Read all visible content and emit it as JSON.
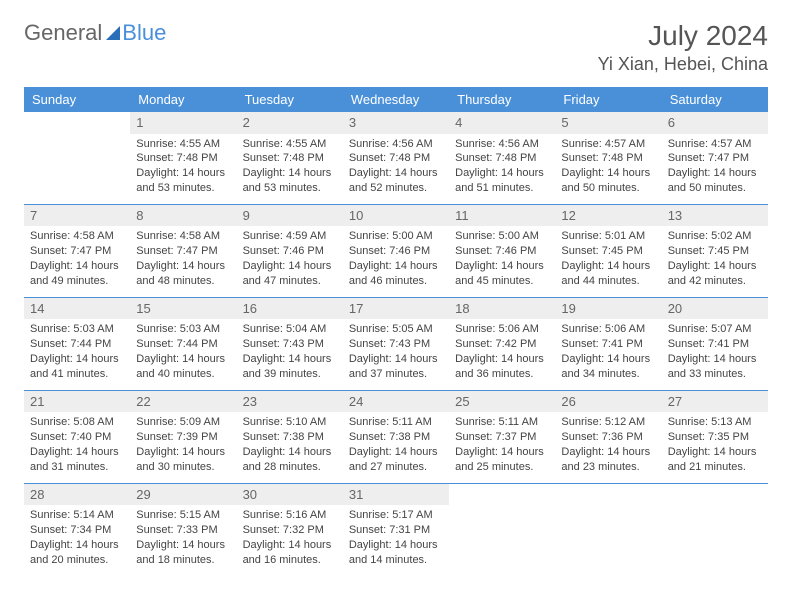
{
  "brand": {
    "part1": "General",
    "part2": "Blue"
  },
  "title": "July 2024",
  "location": "Yi Xian, Hebei, China",
  "colors": {
    "header_bg": "#4a90d9",
    "header_text": "#ffffff",
    "daynum_bg": "#eeeeee",
    "border": "#4a90d9",
    "body_text": "#444444"
  },
  "weekdays": [
    "Sunday",
    "Monday",
    "Tuesday",
    "Wednesday",
    "Thursday",
    "Friday",
    "Saturday"
  ],
  "cells": [
    {
      "day": "",
      "sunrise": "",
      "sunset": "",
      "daylight": "",
      "blank": true
    },
    {
      "day": "1",
      "sunrise": "Sunrise: 4:55 AM",
      "sunset": "Sunset: 7:48 PM",
      "daylight": "Daylight: 14 hours and 53 minutes."
    },
    {
      "day": "2",
      "sunrise": "Sunrise: 4:55 AM",
      "sunset": "Sunset: 7:48 PM",
      "daylight": "Daylight: 14 hours and 53 minutes."
    },
    {
      "day": "3",
      "sunrise": "Sunrise: 4:56 AM",
      "sunset": "Sunset: 7:48 PM",
      "daylight": "Daylight: 14 hours and 52 minutes."
    },
    {
      "day": "4",
      "sunrise": "Sunrise: 4:56 AM",
      "sunset": "Sunset: 7:48 PM",
      "daylight": "Daylight: 14 hours and 51 minutes."
    },
    {
      "day": "5",
      "sunrise": "Sunrise: 4:57 AM",
      "sunset": "Sunset: 7:48 PM",
      "daylight": "Daylight: 14 hours and 50 minutes."
    },
    {
      "day": "6",
      "sunrise": "Sunrise: 4:57 AM",
      "sunset": "Sunset: 7:47 PM",
      "daylight": "Daylight: 14 hours and 50 minutes."
    },
    {
      "day": "7",
      "sunrise": "Sunrise: 4:58 AM",
      "sunset": "Sunset: 7:47 PM",
      "daylight": "Daylight: 14 hours and 49 minutes."
    },
    {
      "day": "8",
      "sunrise": "Sunrise: 4:58 AM",
      "sunset": "Sunset: 7:47 PM",
      "daylight": "Daylight: 14 hours and 48 minutes."
    },
    {
      "day": "9",
      "sunrise": "Sunrise: 4:59 AM",
      "sunset": "Sunset: 7:46 PM",
      "daylight": "Daylight: 14 hours and 47 minutes."
    },
    {
      "day": "10",
      "sunrise": "Sunrise: 5:00 AM",
      "sunset": "Sunset: 7:46 PM",
      "daylight": "Daylight: 14 hours and 46 minutes."
    },
    {
      "day": "11",
      "sunrise": "Sunrise: 5:00 AM",
      "sunset": "Sunset: 7:46 PM",
      "daylight": "Daylight: 14 hours and 45 minutes."
    },
    {
      "day": "12",
      "sunrise": "Sunrise: 5:01 AM",
      "sunset": "Sunset: 7:45 PM",
      "daylight": "Daylight: 14 hours and 44 minutes."
    },
    {
      "day": "13",
      "sunrise": "Sunrise: 5:02 AM",
      "sunset": "Sunset: 7:45 PM",
      "daylight": "Daylight: 14 hours and 42 minutes."
    },
    {
      "day": "14",
      "sunrise": "Sunrise: 5:03 AM",
      "sunset": "Sunset: 7:44 PM",
      "daylight": "Daylight: 14 hours and 41 minutes."
    },
    {
      "day": "15",
      "sunrise": "Sunrise: 5:03 AM",
      "sunset": "Sunset: 7:44 PM",
      "daylight": "Daylight: 14 hours and 40 minutes."
    },
    {
      "day": "16",
      "sunrise": "Sunrise: 5:04 AM",
      "sunset": "Sunset: 7:43 PM",
      "daylight": "Daylight: 14 hours and 39 minutes."
    },
    {
      "day": "17",
      "sunrise": "Sunrise: 5:05 AM",
      "sunset": "Sunset: 7:43 PM",
      "daylight": "Daylight: 14 hours and 37 minutes."
    },
    {
      "day": "18",
      "sunrise": "Sunrise: 5:06 AM",
      "sunset": "Sunset: 7:42 PM",
      "daylight": "Daylight: 14 hours and 36 minutes."
    },
    {
      "day": "19",
      "sunrise": "Sunrise: 5:06 AM",
      "sunset": "Sunset: 7:41 PM",
      "daylight": "Daylight: 14 hours and 34 minutes."
    },
    {
      "day": "20",
      "sunrise": "Sunrise: 5:07 AM",
      "sunset": "Sunset: 7:41 PM",
      "daylight": "Daylight: 14 hours and 33 minutes."
    },
    {
      "day": "21",
      "sunrise": "Sunrise: 5:08 AM",
      "sunset": "Sunset: 7:40 PM",
      "daylight": "Daylight: 14 hours and 31 minutes."
    },
    {
      "day": "22",
      "sunrise": "Sunrise: 5:09 AM",
      "sunset": "Sunset: 7:39 PM",
      "daylight": "Daylight: 14 hours and 30 minutes."
    },
    {
      "day": "23",
      "sunrise": "Sunrise: 5:10 AM",
      "sunset": "Sunset: 7:38 PM",
      "daylight": "Daylight: 14 hours and 28 minutes."
    },
    {
      "day": "24",
      "sunrise": "Sunrise: 5:11 AM",
      "sunset": "Sunset: 7:38 PM",
      "daylight": "Daylight: 14 hours and 27 minutes."
    },
    {
      "day": "25",
      "sunrise": "Sunrise: 5:11 AM",
      "sunset": "Sunset: 7:37 PM",
      "daylight": "Daylight: 14 hours and 25 minutes."
    },
    {
      "day": "26",
      "sunrise": "Sunrise: 5:12 AM",
      "sunset": "Sunset: 7:36 PM",
      "daylight": "Daylight: 14 hours and 23 minutes."
    },
    {
      "day": "27",
      "sunrise": "Sunrise: 5:13 AM",
      "sunset": "Sunset: 7:35 PM",
      "daylight": "Daylight: 14 hours and 21 minutes."
    },
    {
      "day": "28",
      "sunrise": "Sunrise: 5:14 AM",
      "sunset": "Sunset: 7:34 PM",
      "daylight": "Daylight: 14 hours and 20 minutes."
    },
    {
      "day": "29",
      "sunrise": "Sunrise: 5:15 AM",
      "sunset": "Sunset: 7:33 PM",
      "daylight": "Daylight: 14 hours and 18 minutes."
    },
    {
      "day": "30",
      "sunrise": "Sunrise: 5:16 AM",
      "sunset": "Sunset: 7:32 PM",
      "daylight": "Daylight: 14 hours and 16 minutes."
    },
    {
      "day": "31",
      "sunrise": "Sunrise: 5:17 AM",
      "sunset": "Sunset: 7:31 PM",
      "daylight": "Daylight: 14 hours and 14 minutes."
    },
    {
      "day": "",
      "sunrise": "",
      "sunset": "",
      "daylight": "",
      "blank": true
    },
    {
      "day": "",
      "sunrise": "",
      "sunset": "",
      "daylight": "",
      "blank": true
    },
    {
      "day": "",
      "sunrise": "",
      "sunset": "",
      "daylight": "",
      "blank": true
    }
  ]
}
